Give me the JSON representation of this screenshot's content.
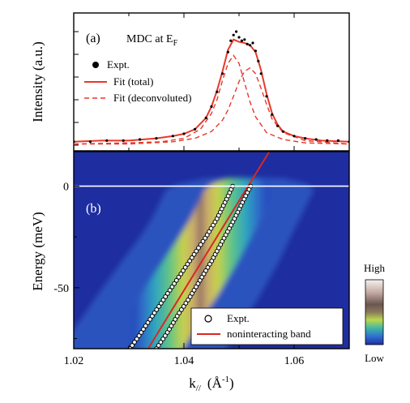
{
  "chart_data": [
    {
      "panel_label": "(a)",
      "type": "line",
      "title": "MDC at E",
      "title_subscript": "F",
      "ylabel": "Intensity (a.u.)",
      "xlim": [
        1.02,
        1.07
      ],
      "legend_position": "top-left",
      "legend": [
        "Expt.",
        "Fit (total)",
        "Fit (deconvoluted)"
      ],
      "series": [
        {
          "name": "Expt.",
          "x": [
            1.02,
            1.023,
            1.026,
            1.029,
            1.032,
            1.035,
            1.038,
            1.04,
            1.042,
            1.044,
            1.045,
            1.046,
            1.047,
            1.048,
            1.0485,
            1.049,
            1.0495,
            1.05,
            1.0505,
            1.051,
            1.0515,
            1.052,
            1.0525,
            1.053,
            1.0535,
            1.054,
            1.055,
            1.056,
            1.057,
            1.058,
            1.06,
            1.062,
            1.064,
            1.066,
            1.068,
            1.07
          ],
          "values": [
            0.03,
            0.03,
            0.04,
            0.04,
            0.05,
            0.06,
            0.08,
            0.1,
            0.14,
            0.24,
            0.34,
            0.47,
            0.63,
            0.82,
            0.92,
            0.97,
            1.0,
            0.95,
            0.92,
            0.93,
            0.89,
            0.88,
            0.9,
            0.83,
            0.74,
            0.63,
            0.43,
            0.27,
            0.17,
            0.12,
            0.08,
            0.06,
            0.05,
            0.04,
            0.04,
            0.03
          ]
        },
        {
          "name": "Fit (total)",
          "x": [
            1.02,
            1.025,
            1.03,
            1.035,
            1.038,
            1.04,
            1.042,
            1.044,
            1.045,
            1.046,
            1.047,
            1.048,
            1.049,
            1.05,
            1.051,
            1.052,
            1.053,
            1.054,
            1.055,
            1.056,
            1.057,
            1.058,
            1.06,
            1.062,
            1.065,
            1.07
          ],
          "values": [
            0.03,
            0.04,
            0.04,
            0.06,
            0.08,
            0.1,
            0.14,
            0.24,
            0.34,
            0.48,
            0.65,
            0.84,
            0.93,
            0.91,
            0.9,
            0.88,
            0.82,
            0.66,
            0.45,
            0.28,
            0.18,
            0.12,
            0.08,
            0.06,
            0.04,
            0.03
          ]
        },
        {
          "name": "Fit (deconvoluted)",
          "x": [
            1.02,
            1.03,
            1.036,
            1.04,
            1.043,
            1.045,
            1.046,
            1.047,
            1.048,
            1.049,
            1.05,
            1.051,
            1.052,
            1.053,
            1.055,
            1.058,
            1.062,
            1.07
          ],
          "values": [
            0.01,
            0.02,
            0.03,
            0.06,
            0.14,
            0.28,
            0.4,
            0.57,
            0.72,
            0.79,
            0.72,
            0.55,
            0.38,
            0.25,
            0.11,
            0.05,
            0.02,
            0.01
          ]
        },
        {
          "name": "Fit (deconvoluted)",
          "x": [
            1.02,
            1.03,
            1.038,
            1.042,
            1.045,
            1.047,
            1.048,
            1.049,
            1.05,
            1.051,
            1.052,
            1.053,
            1.054,
            1.055,
            1.056,
            1.058,
            1.062,
            1.07
          ],
          "values": [
            0.01,
            0.01,
            0.03,
            0.06,
            0.12,
            0.22,
            0.31,
            0.43,
            0.56,
            0.65,
            0.68,
            0.63,
            0.5,
            0.36,
            0.23,
            0.11,
            0.04,
            0.01
          ]
        }
      ]
    },
    {
      "panel_label": "(b)",
      "type": "heatmap",
      "xlabel": "k// (Å-1)",
      "ylabel": "Energy (meV)",
      "xlim": [
        1.02,
        1.07
      ],
      "ylim": [
        -80,
        17
      ],
      "xticks": [
        "1.02",
        "1.04",
        "1.06"
      ],
      "yticks": [
        "0",
        "-50"
      ],
      "colorbar": {
        "top_label": "High",
        "bottom_label": "Low"
      },
      "legend_position": "bottom-right",
      "legend": [
        "Expt.",
        "noninteracting band"
      ],
      "band_left": {
        "x": [
          1.0302,
          1.032,
          1.034,
          1.036,
          1.038,
          1.04,
          1.042,
          1.044,
          1.046,
          1.048,
          1.049
        ],
        "y": [
          -80,
          -73,
          -65,
          -57,
          -49,
          -41,
          -33,
          -25,
          -16,
          -5,
          1
        ]
      },
      "band_right": {
        "x": [
          1.035,
          1.037,
          1.039,
          1.041,
          1.043,
          1.045,
          1.047,
          1.049,
          1.051,
          1.0523
        ],
        "y": [
          -80,
          -72,
          -63,
          -55,
          -46,
          -37,
          -27,
          -17,
          -6,
          1
        ]
      },
      "noninteracting_band": {
        "x": [
          1.0335,
          1.0555
        ],
        "y": [
          -80,
          17
        ]
      },
      "fermi_level": 0
    }
  ],
  "panel_a": {
    "label": "(a)",
    "title": "MDC at E",
    "title_sub": "F",
    "ylabel": "Intensity (a.u.)",
    "legend_expt": "Expt.",
    "legend_fit_total": "Fit (total)",
    "legend_fit_deconv": "Fit (deconvoluted)"
  },
  "panel_b": {
    "label": "(b)",
    "ylabel": "Energy (meV)",
    "xlabel_k": "k",
    "xlabel_sub": "//",
    "xlabel_unit_open": "(Å",
    "xlabel_unit_sup": "-1",
    "xlabel_unit_close": ")",
    "legend_expt": "Expt.",
    "legend_band": "noninteracting band",
    "colorbar_high": "High",
    "colorbar_low": "Low"
  },
  "colors": {
    "fit": "#e8382b",
    "band_line": "#d9281e",
    "heat_low": "#1f2fa0",
    "heat_high": "#f6f2ee"
  }
}
